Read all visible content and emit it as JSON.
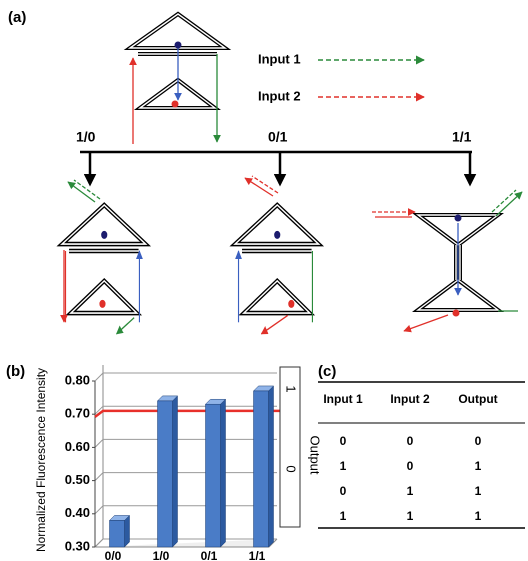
{
  "panel_labels": [
    "(a)",
    "(b)",
    "(c)"
  ],
  "diagram": {
    "legend": [
      {
        "label": "Input 1",
        "color": "#2a8a3a"
      },
      {
        "label": "Input 2",
        "color": "#e0302a"
      }
    ],
    "branches": [
      "1/0",
      "0/1",
      "1/1"
    ]
  },
  "chart_data": {
    "type": "bar",
    "y_label": "Normalized Fluorescence Intensity",
    "categories": [
      "0/0",
      "1/0",
      "0/1",
      "1/1"
    ],
    "values": [
      0.38,
      0.74,
      0.73,
      0.77
    ],
    "color": "#4a7cc7",
    "ylim": [
      0.3,
      0.8
    ],
    "yticks": [
      {
        "value": 0.3,
        "label": "0.30"
      },
      {
        "value": 0.4,
        "label": "0.40"
      },
      {
        "value": 0.5,
        "label": "0.50"
      },
      {
        "value": 0.6,
        "label": "0.60"
      },
      {
        "value": 0.7,
        "label": "0.70"
      },
      {
        "value": 0.8,
        "label": "0.80"
      }
    ],
    "grid": true,
    "threshold": 0.71,
    "threshold_color": "#e8302a",
    "output_label": "Output",
    "output_zones": [
      "0",
      "1"
    ]
  },
  "table": {
    "header": [
      "Input 1",
      "Input 2",
      "Output"
    ],
    "rows": [
      [
        "0",
        "0",
        "0"
      ],
      [
        "1",
        "0",
        "1"
      ],
      [
        "0",
        "1",
        "1"
      ],
      [
        "1",
        "1",
        "1"
      ]
    ]
  }
}
